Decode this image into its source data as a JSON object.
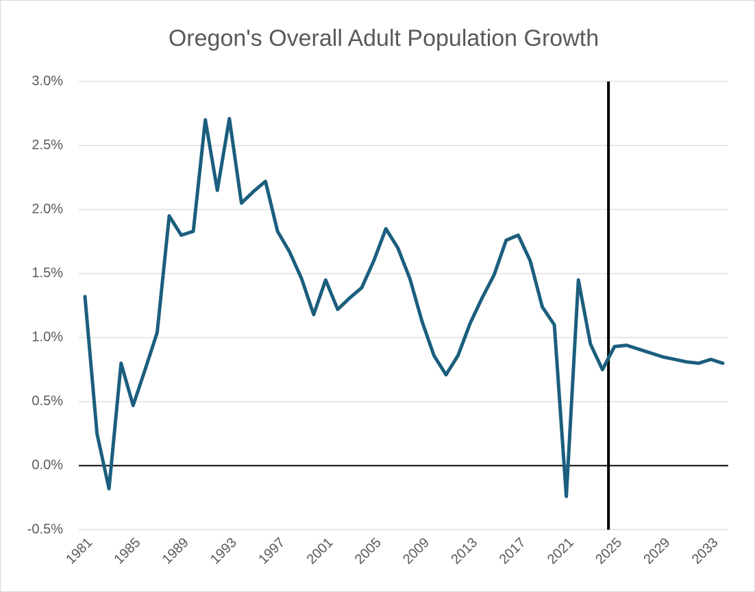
{
  "chart_data": {
    "type": "line",
    "title": "Oregon's Overall Adult Population Growth",
    "x": [
      1981,
      1982,
      1983,
      1984,
      1985,
      1986,
      1987,
      1988,
      1989,
      1990,
      1991,
      1992,
      1993,
      1994,
      1995,
      1996,
      1997,
      1998,
      1999,
      2000,
      2001,
      2002,
      2003,
      2004,
      2005,
      2006,
      2007,
      2008,
      2009,
      2010,
      2011,
      2012,
      2013,
      2014,
      2015,
      2016,
      2017,
      2018,
      2019,
      2020,
      2021,
      2022,
      2023,
      2024,
      2025,
      2026,
      2027,
      2028,
      2029,
      2030,
      2031,
      2032,
      2033,
      2034
    ],
    "series": [
      {
        "color": "#1b5e7e",
        "values": [
          1.32,
          0.25,
          -0.18,
          0.8,
          0.47,
          0.75,
          1.04,
          1.95,
          1.8,
          1.83,
          2.7,
          2.15,
          2.71,
          2.05,
          2.14,
          2.22,
          1.83,
          1.67,
          1.46,
          1.18,
          1.45,
          1.22,
          1.31,
          1.39,
          1.6,
          1.85,
          1.7,
          1.46,
          1.13,
          0.86,
          0.71,
          0.86,
          1.11,
          1.31,
          1.49,
          1.76,
          1.8,
          1.6,
          1.24,
          1.1,
          -0.24,
          1.45,
          0.95,
          0.75,
          0.93,
          0.94,
          0.91,
          0.88,
          0.85,
          0.83,
          0.81,
          0.8,
          0.83,
          0.8
        ]
      }
    ],
    "xlim": [
      1981,
      2034
    ],
    "xticks": [
      1981,
      1985,
      1989,
      1993,
      1997,
      2001,
      2005,
      2009,
      2013,
      2017,
      2021,
      2025,
      2029,
      2033
    ],
    "ylim": [
      -0.5,
      3.0
    ],
    "yticks": [
      {
        "value": -0.5,
        "label": "-0.5%"
      },
      {
        "value": 0,
        "label": "0.0%"
      },
      {
        "value": 0.5,
        "label": "0.5%"
      },
      {
        "value": 1.0,
        "label": "1.0%"
      },
      {
        "value": 1.5,
        "label": "1.5%"
      },
      {
        "value": 2.0,
        "label": "2.0%"
      },
      {
        "value": 2.5,
        "label": "2.5%"
      },
      {
        "value": 3.0,
        "label": "3.0%"
      }
    ],
    "grid": true,
    "vline": 2024.5
  }
}
